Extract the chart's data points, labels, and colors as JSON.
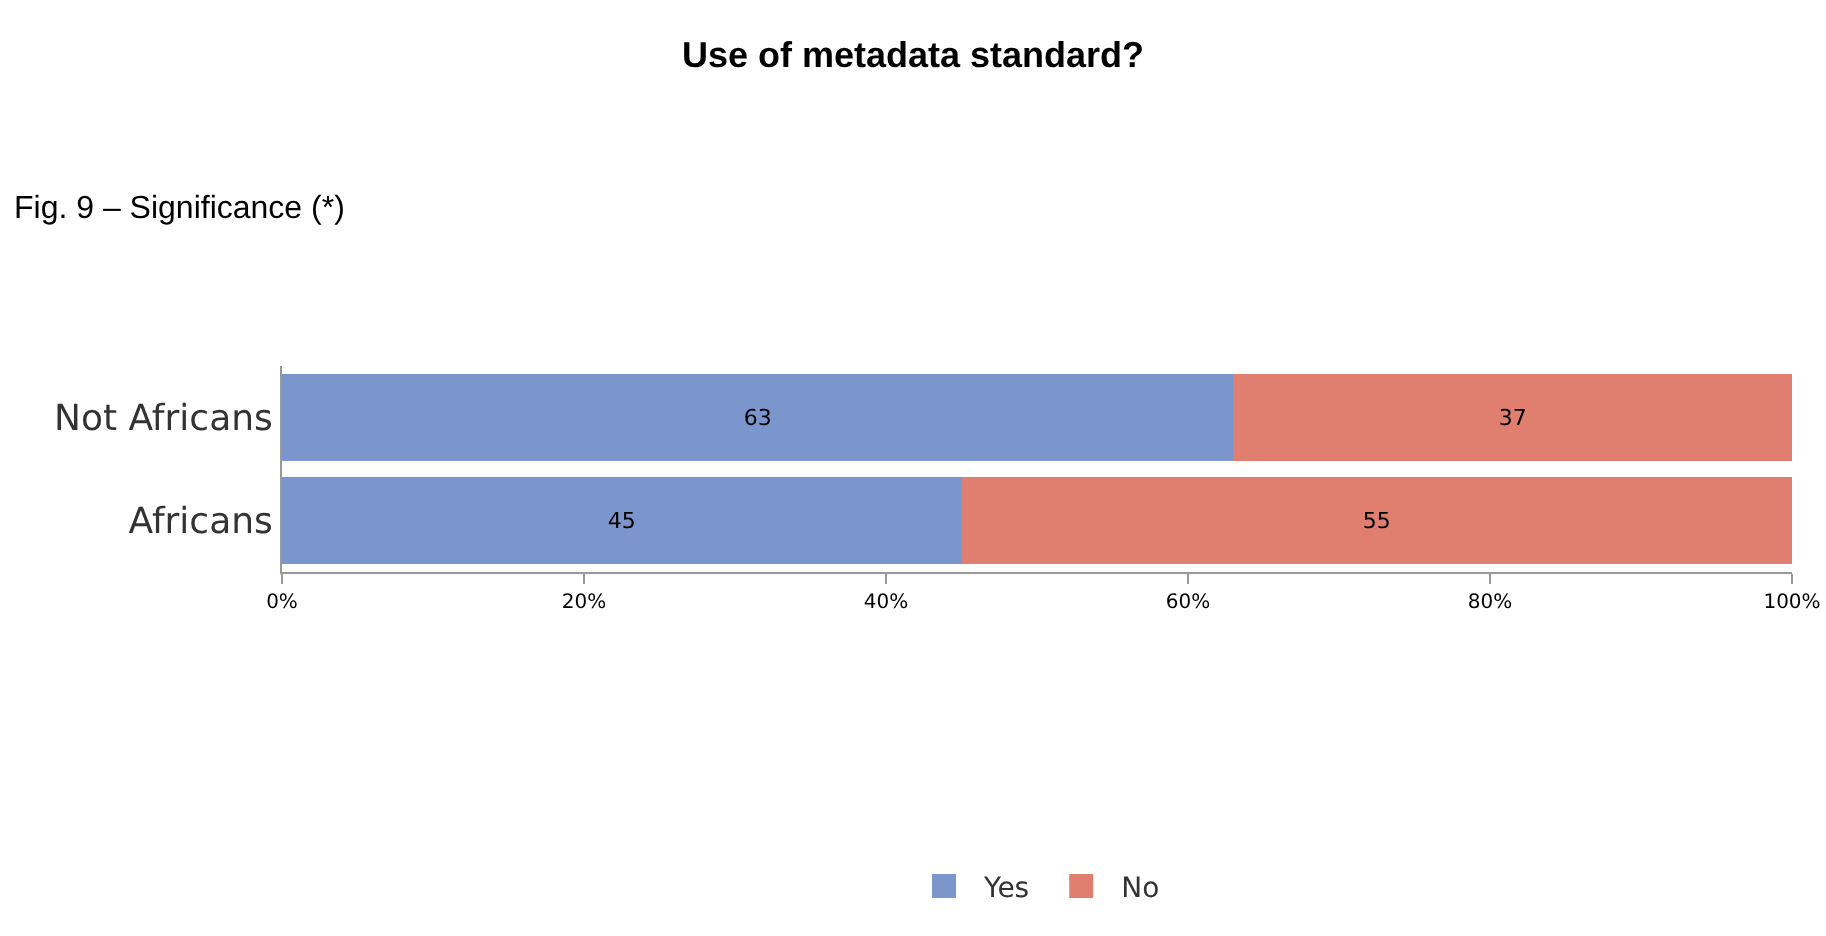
{
  "chart_data": {
    "type": "bar",
    "orientation": "horizontal",
    "stacked": true,
    "title": "Use of metadata standard?",
    "annotations": [
      "Fig. 9 – Significance (*)"
    ],
    "categories": [
      "Not Africans",
      "Africans"
    ],
    "series": [
      {
        "name": "Yes",
        "color": "#7b96cd",
        "values": [
          63,
          45
        ]
      },
      {
        "name": "No",
        "color": "#e07f6f",
        "values": [
          37,
          55
        ]
      }
    ],
    "xlim": [
      0,
      100
    ],
    "xticks": [
      {
        "value": 0,
        "label": "0%"
      },
      {
        "value": 20,
        "label": "20%"
      },
      {
        "value": 40,
        "label": "40%"
      },
      {
        "value": 60,
        "label": "60%"
      },
      {
        "value": 80,
        "label": "80%"
      },
      {
        "value": 100,
        "label": "100%"
      }
    ],
    "data_labels": true,
    "grid": false,
    "legend": "bottom"
  }
}
